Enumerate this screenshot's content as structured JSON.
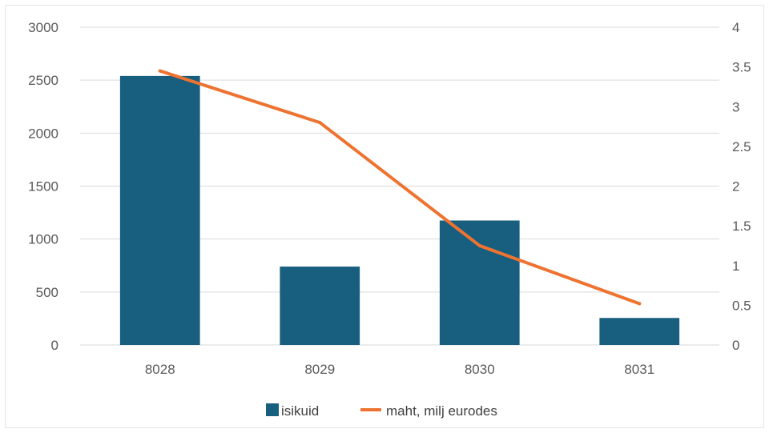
{
  "chart_data": {
    "type": "bar",
    "categories": [
      "8028",
      "8029",
      "8030",
      "8031"
    ],
    "series": [
      {
        "name": "isikuid",
        "type": "bar",
        "axis": "left",
        "values": [
          2540,
          740,
          1175,
          255
        ]
      },
      {
        "name": "maht, milj eurodes",
        "type": "line",
        "axis": "right",
        "values": [
          3.45,
          2.8,
          1.25,
          0.52
        ]
      }
    ],
    "y_left": {
      "range": [
        0,
        3000
      ],
      "ticks": [
        "0",
        "500",
        "1000",
        "1500",
        "2000",
        "2500",
        "3000"
      ]
    },
    "y_right": {
      "range": [
        0,
        4
      ],
      "ticks": [
        "0",
        "0.5",
        "1",
        "1.5",
        "2",
        "2.5",
        "3",
        "3.5",
        "4"
      ]
    },
    "grid": true,
    "legend_position": "bottom",
    "colors": {
      "bar": "#175e7f",
      "line": "#ee7330",
      "grid": "#d9d9d9",
      "tick_text": "#595959"
    }
  }
}
